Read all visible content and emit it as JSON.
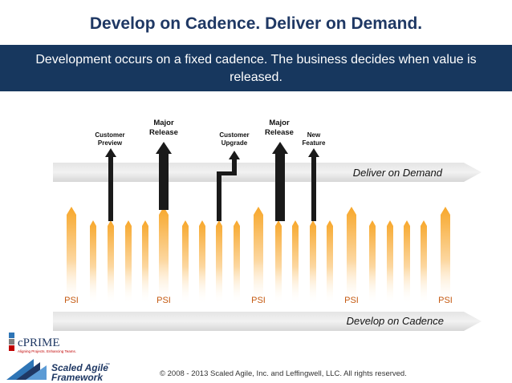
{
  "title": "Develop on Cadence. Deliver on Demand.",
  "banner_text": "Development occurs on a fixed cadence. The business decides when value is released.",
  "release_labels": [
    {
      "line1": "Customer",
      "line2": "Preview"
    },
    {
      "line1": "Major",
      "line2": "Release"
    },
    {
      "line1": "Customer",
      "line2": "Upgrade"
    },
    {
      "line1": "Major",
      "line2": "Release"
    },
    {
      "line1": "New",
      "line2": "Feature"
    }
  ],
  "deliver_label": "Deliver on Demand",
  "develop_label": "Develop on Cadence",
  "psi_labels": [
    "PSI",
    "PSI",
    "PSI",
    "PSI",
    "PSI"
  ],
  "logos": {
    "cprime_name": "cPRIME",
    "cprime_tagline": "Aligning Projects. Enhancing Teams.",
    "safe_line1": "Scaled Agile",
    "safe_line2": "Framework",
    "safe_mark": "™"
  },
  "footer": "© 2008 - 2013 Scaled Agile, Inc. and Leffingwell, LLC. All rights reserved.",
  "colors": {
    "title": "#1f3864",
    "banner": "#17375e",
    "arrow_gray": "#d9d9d9",
    "psi_text": "#c55a11",
    "cadence_orange": "#f7a72b"
  }
}
